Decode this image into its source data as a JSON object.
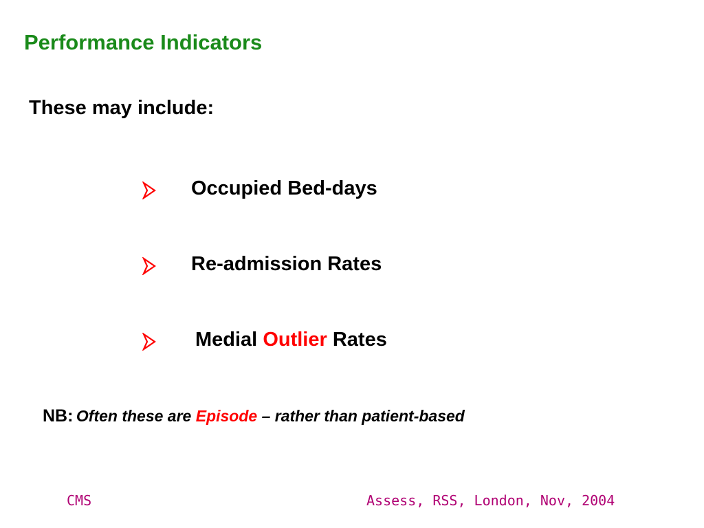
{
  "slide": {
    "title": "Performance Indicators",
    "intro": "These may include:",
    "bullets": [
      {
        "icon": "arrow-bullet-icon",
        "text_before": "Occupied Bed-days",
        "highlight": "",
        "text_after": ""
      },
      {
        "icon": "arrow-bullet-icon",
        "text_before": "Re-admission Rates",
        "highlight": "",
        "text_after": ""
      },
      {
        "icon": "arrow-bullet-icon",
        "text_before": "Medial ",
        "highlight": "Outlier",
        "text_after": " Rates"
      }
    ],
    "note": {
      "label": "NB:",
      "text_before": "Often these are ",
      "highlight": "Episode",
      "text_after": " – rather than patient-based"
    },
    "footer": {
      "left": "CMS",
      "right": "Assess, RSS, London, Nov, 2004"
    }
  },
  "colors": {
    "title": "#1a8a1a",
    "accent": "#ff0000",
    "footer": "#b00073",
    "text": "#000000"
  }
}
